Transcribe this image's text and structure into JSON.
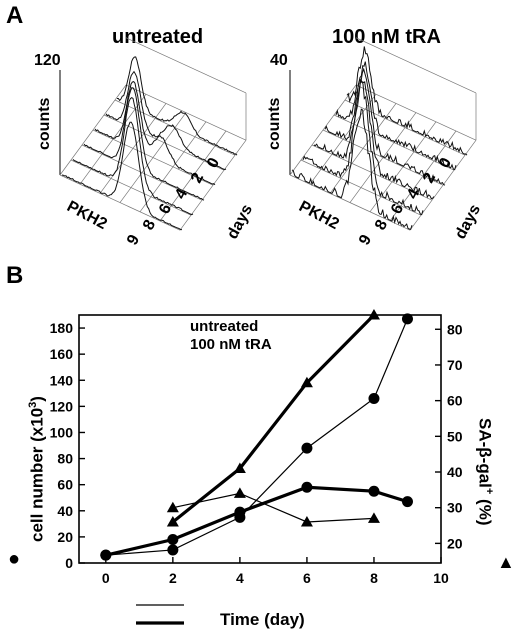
{
  "panel_a": {
    "letter": "A",
    "left": {
      "title": "untreated",
      "ymax_label": "120",
      "ylabel": "counts",
      "xlabel": "PKH2",
      "depth_label": "days",
      "depth_ticks": [
        "9",
        "8",
        "6",
        "4",
        "2",
        "0"
      ]
    },
    "right": {
      "title": "100 nM tRA",
      "ymax_label": "40",
      "ylabel": "counts",
      "xlabel": "PKH2",
      "depth_label": "days",
      "depth_ticks": [
        "9",
        "8",
        "6",
        "4",
        "2",
        "0"
      ]
    }
  },
  "panel_b": {
    "letter": "B",
    "xlabel": "Time (day)",
    "ylabel_left": "cell number (x10",
    "ylabel_left_sup": "3",
    "ylabel_left_end": ")",
    "ylabel_right_main": "SA-β-gal",
    "ylabel_right_sup": "+",
    "ylabel_right_unit": " (%)",
    "left_marker": "●",
    "right_marker": "▲",
    "legend": [
      {
        "label": "untreated"
      },
      {
        "label": "100 nM tRA"
      }
    ]
  },
  "chart_data": {
    "type": "line",
    "x_ticks": [
      0,
      2,
      4,
      6,
      8,
      10
    ],
    "y_left_ticks": [
      0,
      20,
      40,
      60,
      80,
      100,
      120,
      140,
      160,
      180
    ],
    "y_right_ticks": [
      20,
      30,
      40,
      50,
      60,
      70,
      80
    ],
    "xlim": [
      -0.8,
      10
    ],
    "ylim_left": [
      0,
      190
    ],
    "ylim_right": [
      14.5,
      84
    ],
    "series": [
      {
        "name": "untreated",
        "marker": "circle",
        "axis": "left",
        "line": "thin",
        "x": [
          0,
          2,
          4,
          6,
          8,
          9
        ],
        "y": [
          6,
          10,
          35,
          88,
          126,
          187
        ]
      },
      {
        "name": "100 nM tRA",
        "marker": "circle",
        "axis": "left",
        "line": "thick",
        "x": [
          0,
          2,
          4,
          6,
          8,
          9
        ],
        "y": [
          6,
          18,
          39,
          58,
          55,
          47
        ]
      },
      {
        "name": "untreated",
        "marker": "triangle",
        "axis": "right",
        "line": "thin",
        "x": [
          2,
          4,
          6,
          8
        ],
        "y": [
          30,
          34,
          26,
          27
        ]
      },
      {
        "name": "100 nM tRA",
        "marker": "triangle",
        "axis": "right",
        "line": "thick",
        "x": [
          2,
          4,
          6,
          8
        ],
        "y": [
          26,
          41,
          65,
          84
        ]
      }
    ]
  }
}
